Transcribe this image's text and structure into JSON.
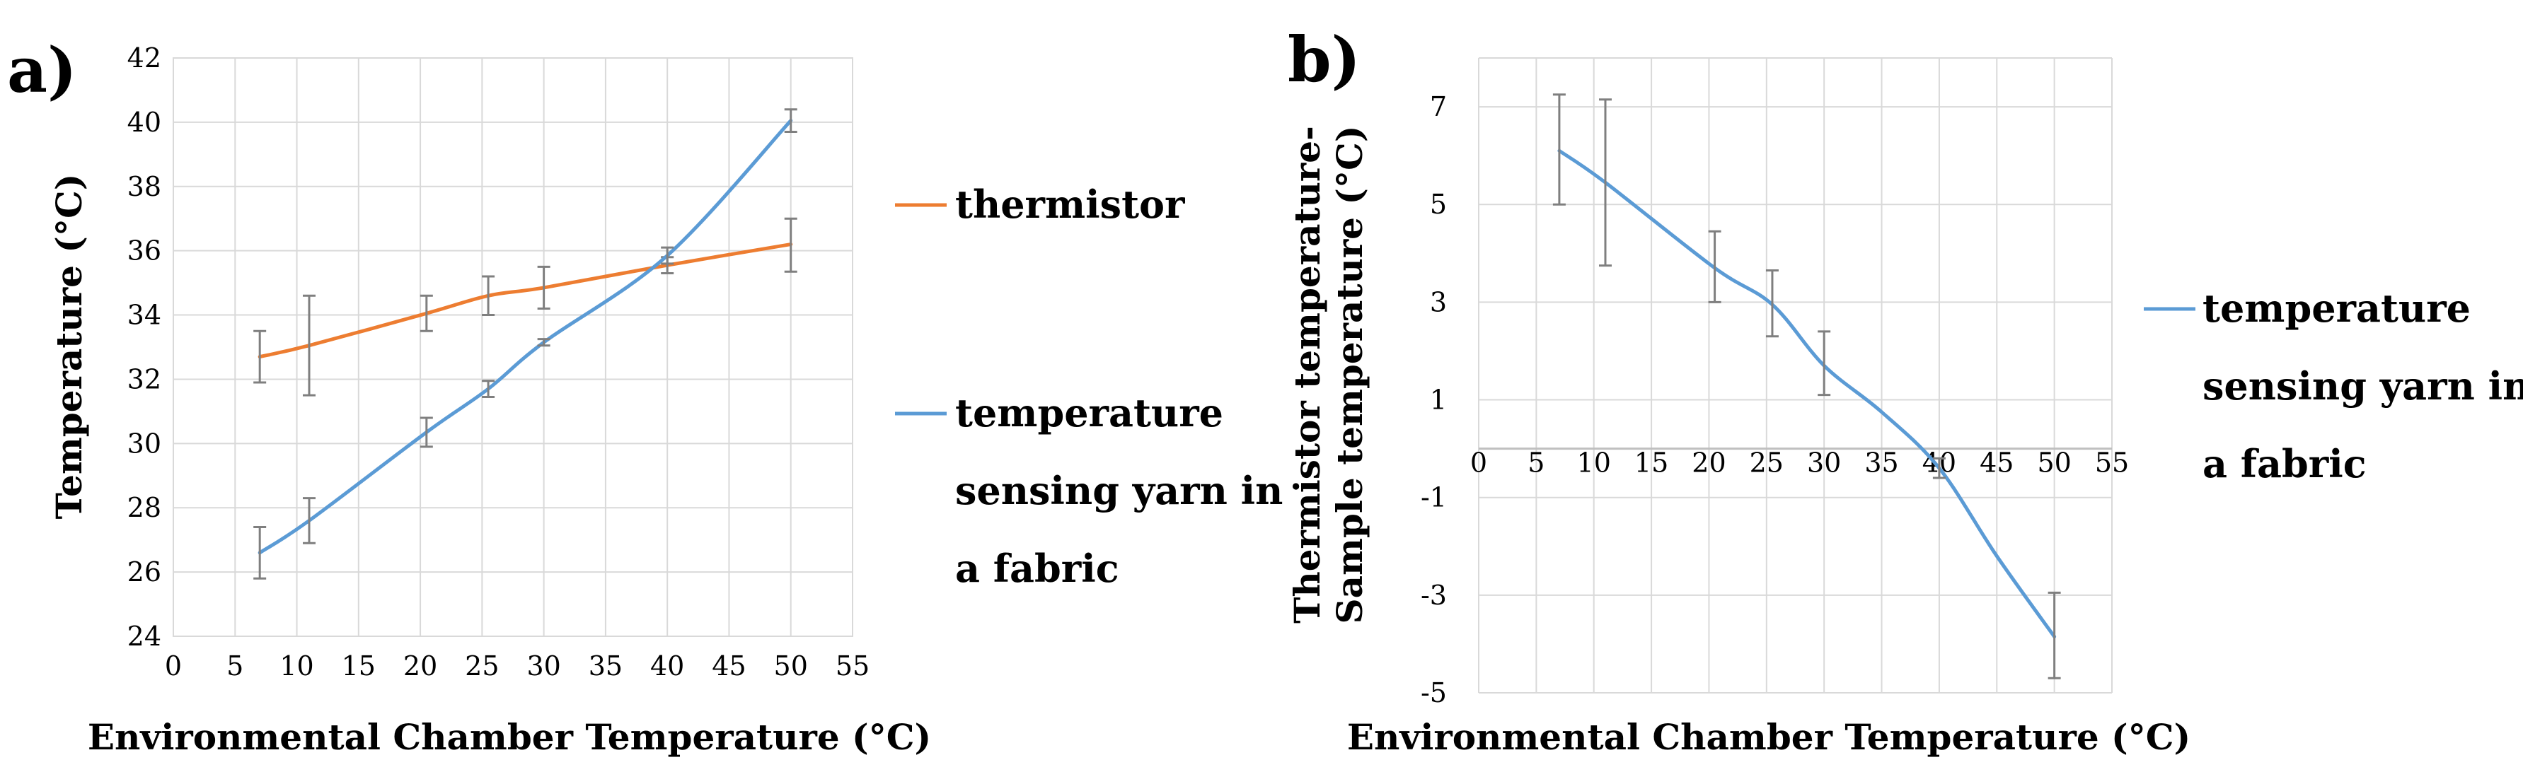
{
  "panels": {
    "a": {
      "label": "a)"
    },
    "b": {
      "label": "b)"
    }
  },
  "chart_data": [
    {
      "id": "a",
      "type": "line",
      "title": "",
      "xlabel": "Environmental Chamber Temperature (°C)",
      "ylabel": "Temperature (°C)",
      "xlim": [
        0,
        55
      ],
      "ylim": [
        24,
        42
      ],
      "xticks": [
        0,
        5,
        10,
        15,
        20,
        25,
        30,
        35,
        40,
        45,
        50,
        55
      ],
      "yticks": [
        24,
        26,
        28,
        30,
        32,
        34,
        36,
        38,
        40,
        42
      ],
      "grid": true,
      "legend_position": "right",
      "series": [
        {
          "name": "thermistor",
          "color": "#ED7D31",
          "x": [
            7,
            11,
            20.5,
            25.5,
            30,
            40,
            50
          ],
          "y": [
            32.7,
            33.05,
            34.05,
            34.6,
            34.85,
            35.55,
            36.2
          ],
          "err_low": [
            31.9,
            31.5,
            33.5,
            34.0,
            34.2,
            35.3,
            35.35
          ],
          "err_high": [
            33.5,
            34.6,
            34.6,
            35.2,
            35.5,
            35.8,
            37.0
          ]
        },
        {
          "name": "temperature sensing yarn in a fabric",
          "color": "#5B9BD5",
          "x": [
            7,
            11,
            20.5,
            25.5,
            30,
            40,
            50
          ],
          "y": [
            26.6,
            27.6,
            30.35,
            31.7,
            33.15,
            35.85,
            40.05
          ],
          "err_low": [
            25.8,
            26.9,
            29.9,
            31.45,
            33.05,
            35.6,
            39.7
          ],
          "err_high": [
            27.4,
            28.3,
            30.8,
            31.95,
            33.25,
            36.1,
            40.4
          ]
        }
      ]
    },
    {
      "id": "b",
      "type": "line",
      "title": "",
      "xlabel": "Environmental Chamber Temperature (°C)",
      "ylabel": "Thermistor temperature- Sample temperature (°C)",
      "ylabel_lines": [
        "Thermistor temperature-",
        "Sample temperature (°C)"
      ],
      "xlim": [
        0,
        55
      ],
      "ylim": [
        -5,
        8
      ],
      "xticks": [
        0,
        5,
        10,
        15,
        20,
        25,
        30,
        35,
        40,
        45,
        50,
        55
      ],
      "yticks": [
        -5,
        -3,
        -1,
        1,
        3,
        5,
        7
      ],
      "grid": true,
      "legend_position": "right",
      "series": [
        {
          "name": "temperature sensing yarn in a fabric",
          "color": "#5B9BD5",
          "x": [
            7,
            11,
            20.5,
            25.5,
            30,
            35,
            40,
            45,
            50
          ],
          "y": [
            6.1,
            5.45,
            3.7,
            2.95,
            1.7,
            0.75,
            -0.4,
            -2.2,
            -3.85
          ],
          "err_x": [
            7,
            11,
            20.5,
            25.5,
            30,
            40,
            50
          ],
          "err_low": [
            5.0,
            3.75,
            3.0,
            2.3,
            1.1,
            -0.6,
            -4.7
          ],
          "err_high": [
            7.25,
            7.15,
            4.45,
            3.65,
            2.4,
            -0.2,
            -2.95
          ]
        }
      ]
    }
  ]
}
